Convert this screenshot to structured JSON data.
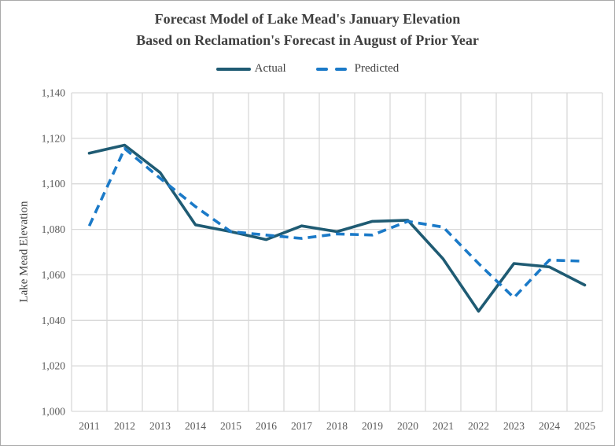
{
  "chart_data": {
    "type": "line",
    "title_line1": "Forecast Model of Lake Mead's January Elevation",
    "title_line2": "Based on Reclamation's Forecast in August of Prior Year",
    "ylabel": "Lake Mead Elevation",
    "categories": [
      "2011",
      "2012",
      "2013",
      "2014",
      "2015",
      "2016",
      "2017",
      "2018",
      "2019",
      "2020",
      "2021",
      "2022",
      "2023",
      "2024",
      "2025"
    ],
    "series": [
      {
        "name": "Actual",
        "style": "solid",
        "color": "#1f5b73",
        "values": [
          1113.5,
          1117,
          1105,
          1082,
          1079,
          1075.5,
          1081.5,
          1079,
          1083.5,
          1084,
          1067,
          1044,
          1065,
          1063.5,
          1055.5
        ]
      },
      {
        "name": "Predicted",
        "style": "dashed",
        "color": "#1b7ac8",
        "values": [
          1081.5,
          1115.5,
          1102.5,
          1090,
          1079,
          1077.5,
          1076,
          1078,
          1077.5,
          1083.5,
          1081,
          1065,
          1050,
          1066.5,
          1066
        ]
      }
    ],
    "ylim": [
      1000,
      1140
    ],
    "ytick_step": 20,
    "ytick_labels": [
      "1,000",
      "1,020",
      "1,040",
      "1,060",
      "1,080",
      "1,100",
      "1,120",
      "1,140"
    ],
    "grid": true,
    "gridline_color": "#d9d9d9",
    "legend_position": "top-center",
    "title_color": "#3f3f3f",
    "tick_label_color": "#595959"
  }
}
